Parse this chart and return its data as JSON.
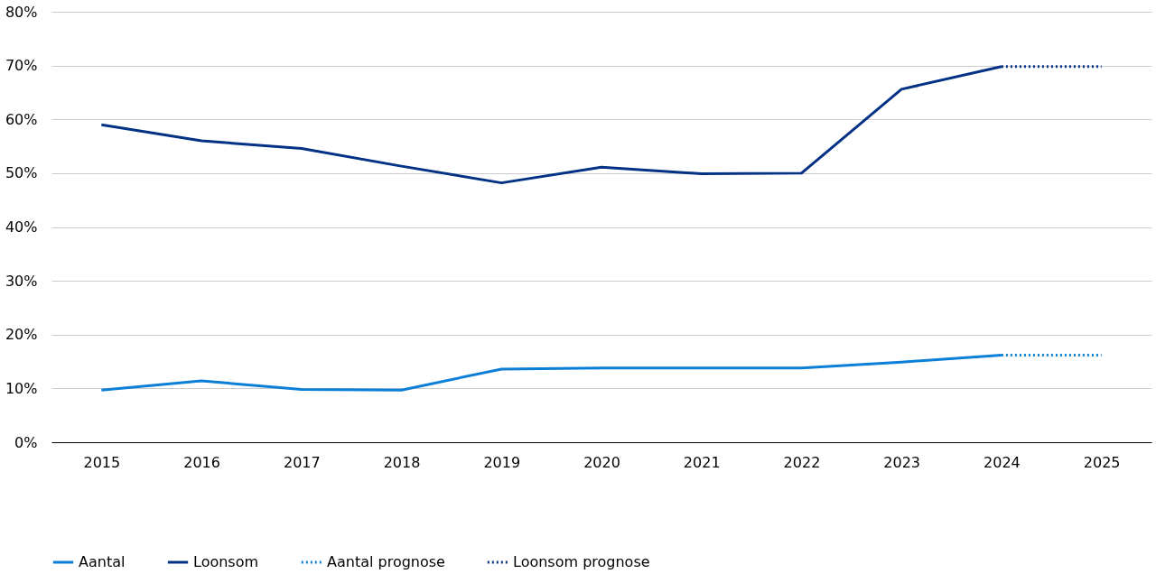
{
  "chart_data": {
    "type": "line",
    "categories": [
      "2015",
      "2016",
      "2017",
      "2018",
      "2019",
      "2020",
      "2021",
      "2022",
      "2023",
      "2024",
      "2025"
    ],
    "series": [
      {
        "name": "Aantal",
        "color": "#0b7fd6",
        "line_style": "solid",
        "values": [
          9.7,
          11.4,
          9.8,
          9.7,
          13.6,
          13.8,
          13.8,
          13.8,
          14.9,
          16.2,
          null
        ]
      },
      {
        "name": "Loonsom",
        "color": "#023185",
        "line_style": "solid",
        "values": [
          59,
          56,
          54.6,
          51.3,
          48.2,
          51.1,
          49.9,
          50,
          65.6,
          69.8,
          null
        ]
      },
      {
        "name": "Aantal prognose",
        "color": "#0b7fd6",
        "line_style": "dotted",
        "values": [
          null,
          null,
          null,
          null,
          null,
          null,
          null,
          null,
          null,
          16.2,
          16.2
        ]
      },
      {
        "name": "Loonsom prognose",
        "color": "#023185",
        "line_style": "dotted",
        "values": [
          null,
          null,
          null,
          null,
          null,
          null,
          null,
          null,
          null,
          69.8,
          69.8
        ]
      }
    ],
    "ylim": [
      0,
      80
    ],
    "yticks": [
      {
        "value": 0,
        "label": "0%"
      },
      {
        "value": 10,
        "label": "10%"
      },
      {
        "value": 20,
        "label": "20%"
      },
      {
        "value": 30,
        "label": "30%"
      },
      {
        "value": 40,
        "label": "40%"
      },
      {
        "value": 50,
        "label": "50%"
      },
      {
        "value": 60,
        "label": "60%"
      },
      {
        "value": 70,
        "label": "70%"
      },
      {
        "value": 80,
        "label": "80%"
      }
    ],
    "grid": "y",
    "legend": "bottom",
    "marker": "none"
  }
}
